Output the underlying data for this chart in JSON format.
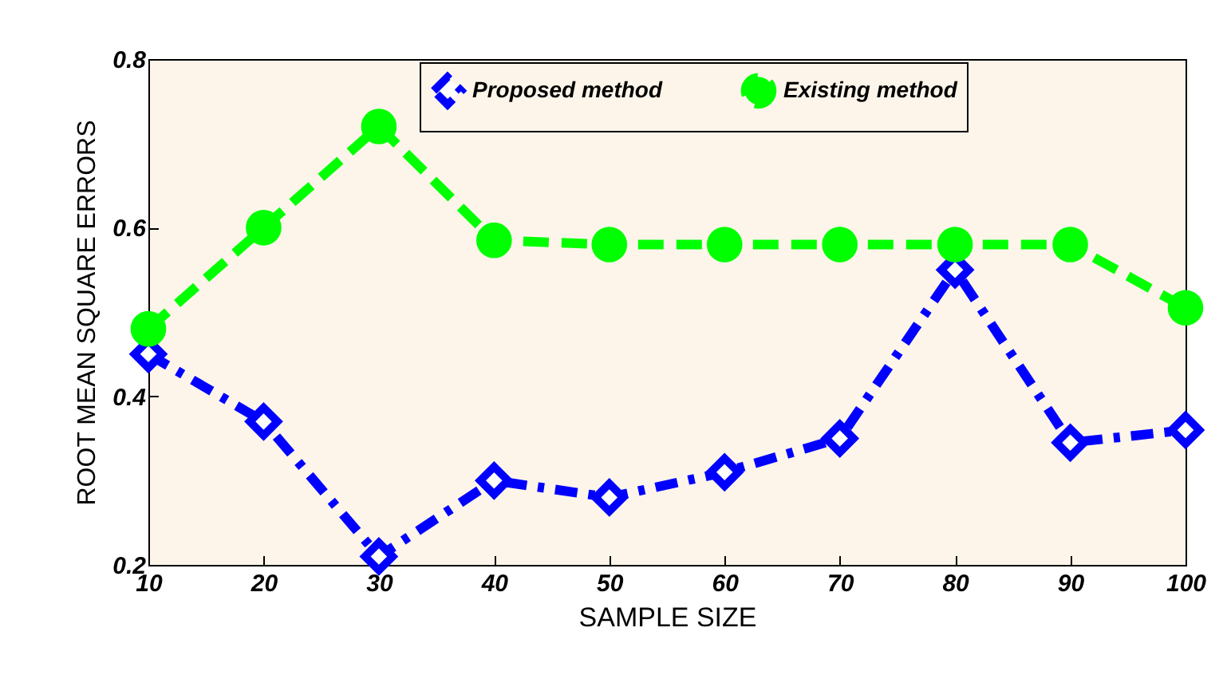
{
  "chart_data": {
    "type": "line",
    "xlabel": "SAMPLE SIZE",
    "ylabel": "ROOT MEAN SQUARE ERRORS",
    "x": [
      10,
      20,
      30,
      40,
      50,
      60,
      70,
      80,
      90,
      100
    ],
    "series": [
      {
        "name": "Proposed method",
        "color": "#0000ff",
        "marker": "diamond",
        "line_style": "dashdot",
        "values": [
          0.45,
          0.37,
          0.21,
          0.3,
          0.28,
          0.31,
          0.35,
          0.55,
          0.345,
          0.36
        ]
      },
      {
        "name": "Existing method",
        "color": "#00ff00",
        "marker": "circle",
        "line_style": "dashed",
        "values": [
          0.48,
          0.6,
          0.72,
          0.585,
          0.58,
          0.58,
          0.58,
          0.58,
          0.58,
          0.505
        ]
      }
    ],
    "xlim": [
      10,
      100
    ],
    "xticks": [
      10,
      20,
      30,
      40,
      50,
      60,
      70,
      80,
      90,
      100
    ],
    "ylim": [
      0.2,
      0.8
    ],
    "yticks": [
      0.2,
      0.4,
      0.6,
      0.8
    ],
    "grid": false,
    "legend": "top"
  }
}
